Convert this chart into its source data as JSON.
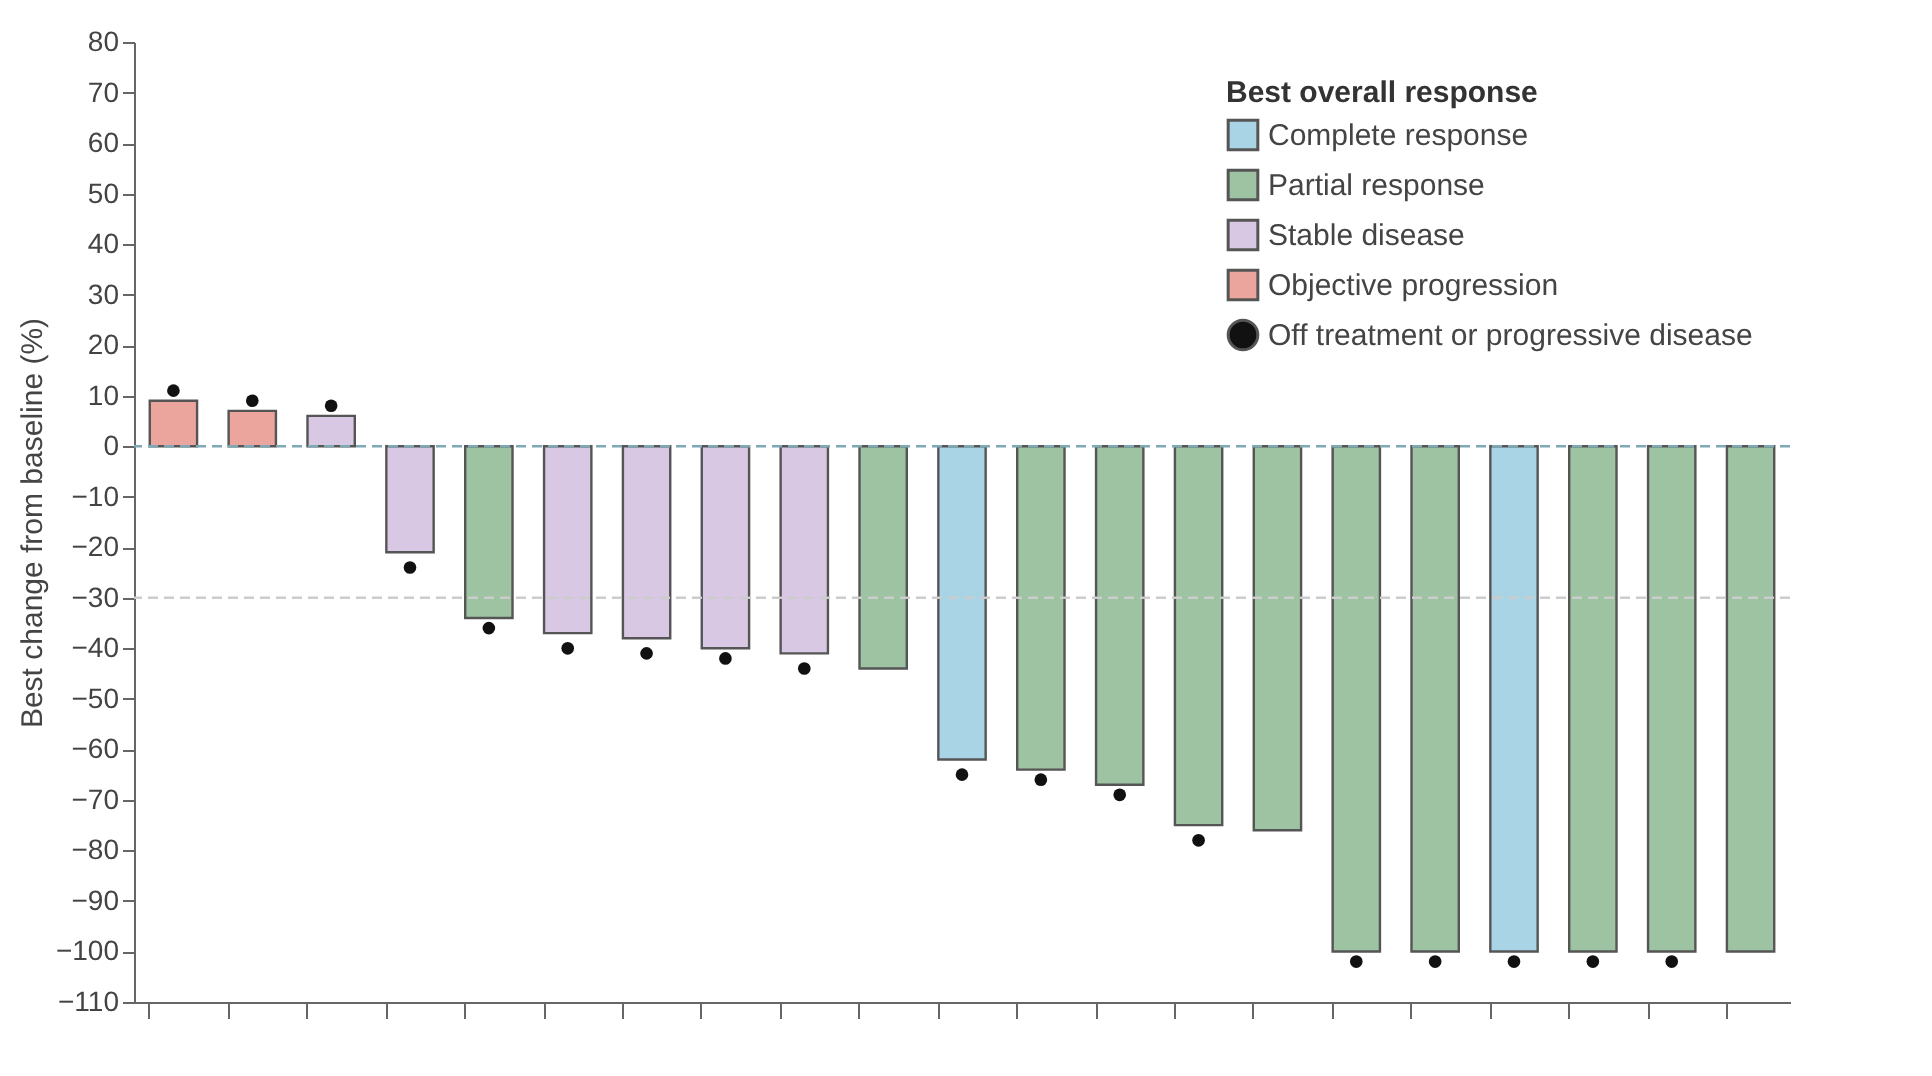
{
  "chart_data": {
    "type": "bar",
    "ylabel": "Best change from baseline (%)",
    "legend_title": "Best overall response",
    "legend": "top right",
    "grid": false,
    "categories": [
      null,
      null,
      null,
      null,
      null,
      null,
      null,
      null,
      null,
      null,
      null,
      null,
      null,
      null,
      null,
      null,
      null,
      null,
      null,
      null,
      null
    ],
    "ylim": [
      -110,
      80
    ],
    "yticks": [
      80,
      70,
      60,
      50,
      40,
      30,
      20,
      10,
      0,
      -10,
      -20,
      -30,
      -40,
      -50,
      -60,
      -70,
      -80,
      -90,
      -100,
      -110
    ],
    "series": [
      {
        "name": "Complete response",
        "color": "#a8d4e6",
        "values": [
          null,
          null,
          null,
          null,
          null,
          null,
          null,
          null,
          null,
          null,
          -62,
          null,
          null,
          null,
          null,
          null,
          null,
          -100,
          null,
          null,
          null
        ]
      },
      {
        "name": "Partial response",
        "color": "#9dc3a3",
        "values": [
          null,
          null,
          null,
          null,
          -34,
          null,
          null,
          null,
          null,
          -44,
          null,
          -64,
          -67,
          -75,
          -76,
          -100,
          -100,
          null,
          -100,
          -100,
          -100
        ]
      },
      {
        "name": "Stable disease",
        "color": "#d9c8e3",
        "values": [
          null,
          null,
          6,
          -21,
          null,
          -37,
          -38,
          -40,
          -41,
          null,
          null,
          null,
          null,
          null,
          null,
          null,
          null,
          null,
          null,
          null,
          null
        ]
      },
      {
        "name": "Objective progression",
        "color": "#eba59c",
        "values": [
          9,
          7,
          null,
          null,
          null,
          null,
          null,
          null,
          null,
          null,
          null,
          null,
          null,
          null,
          null,
          null,
          null,
          null,
          null,
          null,
          null
        ]
      },
      {
        "name": "Off treatment or progressive disease",
        "type": "scatter",
        "marker": "circle",
        "color": "#111111",
        "values": [
          11,
          9,
          8,
          -24,
          -36,
          -40,
          -41,
          -42,
          -44,
          null,
          -65,
          -66,
          -69,
          -78,
          null,
          -102,
          -102,
          -102,
          -102,
          -102,
          null
        ]
      }
    ],
    "ref_lines": [
      {
        "axis": "y",
        "value": 0,
        "line_style": "dashed",
        "color": "#7fa9b5"
      },
      {
        "axis": "y",
        "value": -30,
        "line_style": "dashed",
        "color": "#cccccc"
      }
    ]
  }
}
